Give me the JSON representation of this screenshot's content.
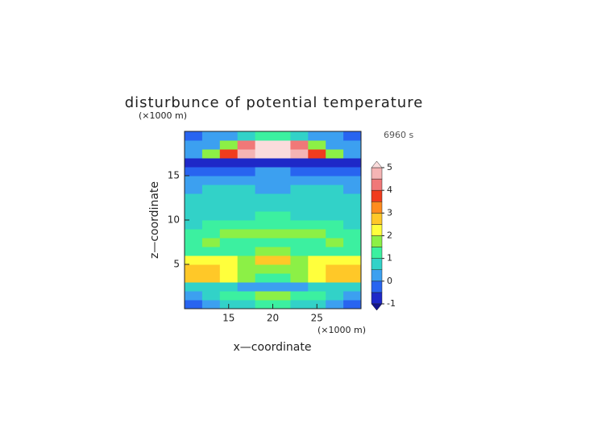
{
  "chart_data": {
    "type": "contour",
    "title": "disturbunce of potential temperature",
    "x_label": "x—coordinate",
    "y_label": "z—coordinate",
    "x_unit": "(×1000 m)",
    "y_unit": "(×1000 m)",
    "time_label": "6960 s",
    "xlim": [
      10,
      30
    ],
    "ylim": [
      0,
      20
    ],
    "xticks": [
      15,
      20,
      25
    ],
    "yticks": [
      5,
      10,
      15
    ],
    "x": [
      11,
      13,
      15,
      17,
      19,
      21,
      23,
      25,
      27,
      29
    ],
    "y": [
      0.5,
      1.5,
      2.5,
      3.5,
      4.5,
      5.5,
      6.5,
      7.5,
      8.5,
      9.5,
      10.5,
      11.5,
      12.5,
      13.5,
      14.5,
      15.5,
      16.5,
      17.5,
      18.5,
      19.5
    ],
    "z": [
      [
        -0.3,
        0,
        0.5,
        0.8,
        1,
        1,
        0.8,
        0.5,
        0,
        -0.3
      ],
      [
        0.3,
        0.6,
        1,
        1.3,
        1.5,
        1.5,
        1.3,
        1,
        0.6,
        0.3
      ],
      [
        0.8,
        0.8,
        0.6,
        0.4,
        0.3,
        0.3,
        0.4,
        0.6,
        0.8,
        0.8
      ],
      [
        2.8,
        2.6,
        2.2,
        1.5,
        1,
        1,
        1.5,
        2.2,
        2.6,
        2.8
      ],
      [
        2.6,
        2.6,
        2.3,
        1.8,
        1.6,
        1.6,
        1.8,
        2.3,
        2.6,
        2.6
      ],
      [
        2,
        2.2,
        2.3,
        1.8,
        2.6,
        2.6,
        1.8,
        2.3,
        2.2,
        2
      ],
      [
        1.2,
        1.3,
        1.2,
        1.4,
        1.8,
        1.8,
        1.4,
        1.2,
        1.3,
        1.2
      ],
      [
        1.4,
        1.8,
        1.3,
        1,
        1.2,
        1.2,
        1,
        1.3,
        1.8,
        1.4
      ],
      [
        1.2,
        1.3,
        1.5,
        1.6,
        1.8,
        1.8,
        1.6,
        1.5,
        1.3,
        1.2
      ],
      [
        0.9,
        1,
        1.2,
        1.4,
        1.2,
        1.2,
        1.4,
        1.2,
        1,
        0.9
      ],
      [
        0.8,
        0.9,
        0.8,
        0.7,
        1.3,
        1.3,
        0.7,
        0.8,
        0.9,
        0.8
      ],
      [
        0.7,
        0.7,
        0.8,
        0.9,
        0.9,
        0.9,
        0.9,
        0.8,
        0.7,
        0.7
      ],
      [
        0.6,
        0.6,
        0.6,
        0.6,
        0.7,
        0.7,
        0.6,
        0.6,
        0.6,
        0.6
      ],
      [
        0.4,
        0.6,
        0.7,
        0.5,
        0.4,
        0.4,
        0.5,
        0.7,
        0.6,
        0.4
      ],
      [
        0.2,
        0.3,
        0.2,
        0.1,
        0,
        0,
        0.1,
        0.2,
        0.3,
        0.2
      ],
      [
        -0.3,
        -0.3,
        -0.5,
        -0.5,
        0.2,
        0.2,
        -0.5,
        -0.5,
        -0.3,
        -0.3
      ],
      [
        -0.8,
        -0.8,
        -0.8,
        -0.8,
        -0.8,
        -0.8,
        -0.8,
        -0.8,
        -0.8,
        -0.8
      ],
      [
        0.3,
        1.5,
        3.5,
        4.5,
        5.5,
        5.5,
        4.5,
        3.5,
        1.5,
        0.3
      ],
      [
        0,
        0.3,
        1.5,
        4,
        5.5,
        5.5,
        4,
        1.5,
        0.3,
        0
      ],
      [
        -0.2,
        0,
        0.2,
        0.5,
        1,
        1,
        0.5,
        0.2,
        0,
        -0.2
      ]
    ],
    "levels": [
      -1,
      -0.5,
      0,
      0.5,
      1,
      1.5,
      2,
      2.5,
      3,
      3.5,
      4,
      4.5,
      5
    ],
    "colors": [
      "#1e28c8",
      "#2864f0",
      "#3ca0f0",
      "#32d2c8",
      "#3cf0a0",
      "#8cf046",
      "#ffff3c",
      "#ffc828",
      "#ff8c1e",
      "#f03c1e",
      "#f07878",
      "#f5b4b4"
    ],
    "under_color": "#14148c",
    "over_color": "#fadcdc",
    "cbar_ticks": [
      -1,
      0,
      1,
      2,
      3,
      4,
      5
    ]
  }
}
